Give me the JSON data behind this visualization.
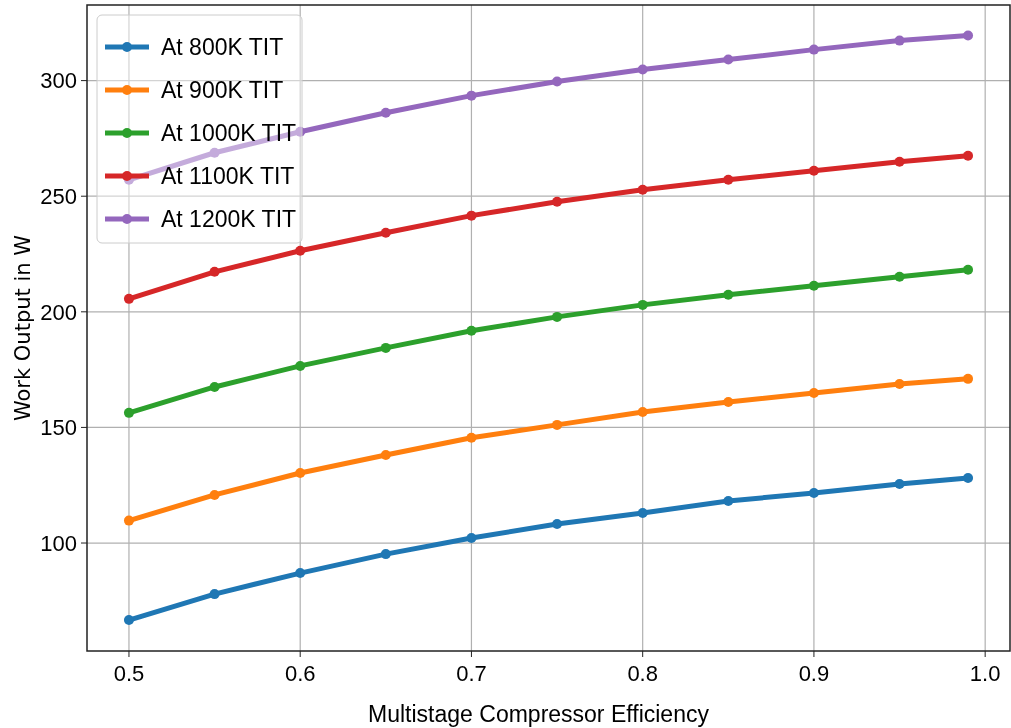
{
  "chart_data": {
    "type": "line",
    "xlabel": "Multistage Compressor Efficiency",
    "ylabel": "Work Output in W",
    "x": [
      0.5,
      0.55,
      0.6,
      0.65,
      0.7,
      0.75,
      0.8,
      0.85,
      0.9,
      0.95,
      0.99
    ],
    "xlim": [
      0.4755,
      1.0145
    ],
    "xticks": [
      {
        "value": 0.5,
        "label": "0.5"
      },
      {
        "value": 0.6,
        "label": "0.6"
      },
      {
        "value": 0.7,
        "label": "0.7"
      },
      {
        "value": 0.8,
        "label": "0.8"
      },
      {
        "value": 0.9,
        "label": "0.9"
      },
      {
        "value": 1.0,
        "label": "1.0"
      }
    ],
    "ylim": [
      53.3,
      332.7
    ],
    "yticks": [
      100,
      150,
      200,
      250,
      300
    ],
    "grid": true,
    "legend": "top left",
    "marker": "circle",
    "line_style": "solid",
    "series": [
      {
        "name": "At 800K TIT",
        "color": "#1f77b4",
        "values": [
          66.7,
          77.9,
          87.0,
          95.2,
          102.2,
          108.2,
          113.0,
          118.2,
          121.6,
          125.5,
          128.1
        ]
      },
      {
        "name": "At 900K TIT",
        "color": "#ff7f0e",
        "values": [
          109.7,
          120.8,
          130.3,
          138.1,
          145.5,
          151.1,
          156.7,
          161.0,
          164.9,
          168.8,
          171.0
        ]
      },
      {
        "name": "At 1000K TIT",
        "color": "#2ca02c",
        "values": [
          156.3,
          167.5,
          176.6,
          184.4,
          191.8,
          197.8,
          203.0,
          207.4,
          211.3,
          215.2,
          218.2
        ]
      },
      {
        "name": "At 1100K TIT",
        "color": "#d62728",
        "values": [
          205.6,
          217.3,
          226.4,
          234.2,
          241.6,
          247.6,
          252.8,
          257.1,
          261.0,
          264.9,
          267.5
        ]
      },
      {
        "name": "At 1200K TIT",
        "color": "#9467bd",
        "values": [
          257.1,
          268.8,
          277.9,
          286.1,
          293.5,
          299.6,
          304.8,
          309.1,
          313.4,
          317.3,
          319.5
        ]
      }
    ]
  }
}
